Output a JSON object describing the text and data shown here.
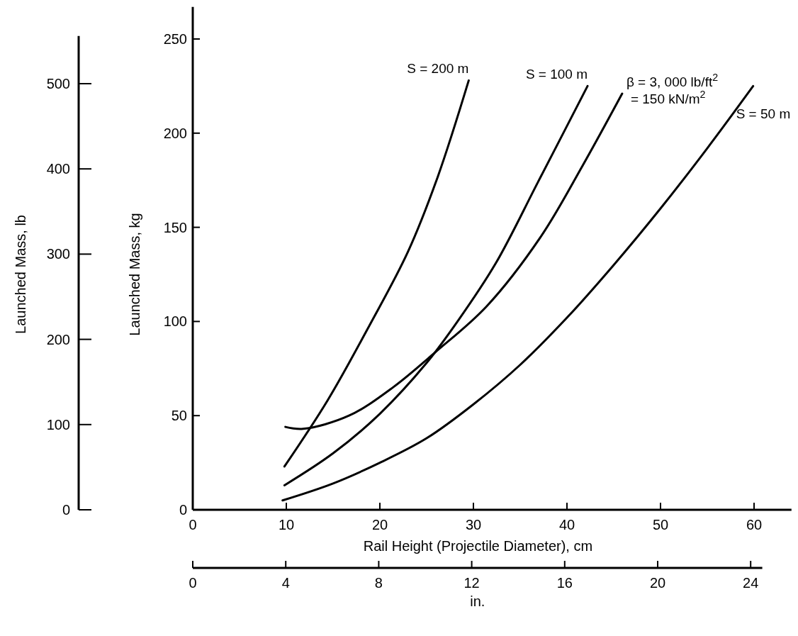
{
  "chart_data": {
    "type": "line",
    "xlabel": "Rail Height (Projectile Diameter), cm",
    "ylabel": "Launched Mass, kg",
    "y2label": "Launched Mass, lb",
    "x2label": "in.",
    "xlim": [
      0,
      64
    ],
    "xticks": [
      0,
      10,
      20,
      30,
      40,
      50,
      60
    ],
    "ylim": [
      0,
      267
    ],
    "yticks": [
      0,
      50,
      100,
      150,
      200,
      250
    ],
    "y2lim": [
      0,
      556
    ],
    "y2ticks": [
      0,
      100,
      200,
      300,
      400,
      500
    ],
    "x2lim": [
      0,
      24.5
    ],
    "x2ticks": [
      0,
      4,
      8,
      12,
      16,
      20,
      24
    ],
    "grid": false,
    "marker": "none",
    "line_style": "solid",
    "annotations": [
      "= 150 kN/m$^{2}$"
    ],
    "series": [
      {
        "name": "S = 200 m",
        "color": "#000000",
        "x": [
          9.8,
          14.4,
          18.9,
          23,
          26.2,
          29.5
        ],
        "values": [
          23,
          58,
          98,
          137,
          177,
          228
        ]
      },
      {
        "name": "S = 100 m",
        "color": "#000000",
        "x": [
          9.8,
          15,
          20,
          25,
          28.3,
          32.4,
          36.9,
          42.2
        ],
        "values": [
          13,
          30,
          51,
          78,
          100,
          131,
          174,
          225
        ]
      },
      {
        "name": "β = 3, 000 lb/ft$^{2}$",
        "color": "#000000",
        "x": [
          9.9,
          11.8,
          16.7,
          21.4,
          26,
          31.4,
          37.2,
          41.7,
          45.9
        ],
        "values": [
          44,
          43,
          50,
          65,
          84,
          108,
          145,
          183,
          221
        ]
      },
      {
        "name": "S = 50 m",
        "color": "#000000",
        "x": [
          9.6,
          15,
          20,
          25,
          30,
          35,
          40,
          45,
          50,
          55,
          59.9
        ],
        "values": [
          5,
          14,
          25,
          38,
          56,
          77,
          102,
          130,
          160,
          192,
          225
        ]
      }
    ]
  }
}
